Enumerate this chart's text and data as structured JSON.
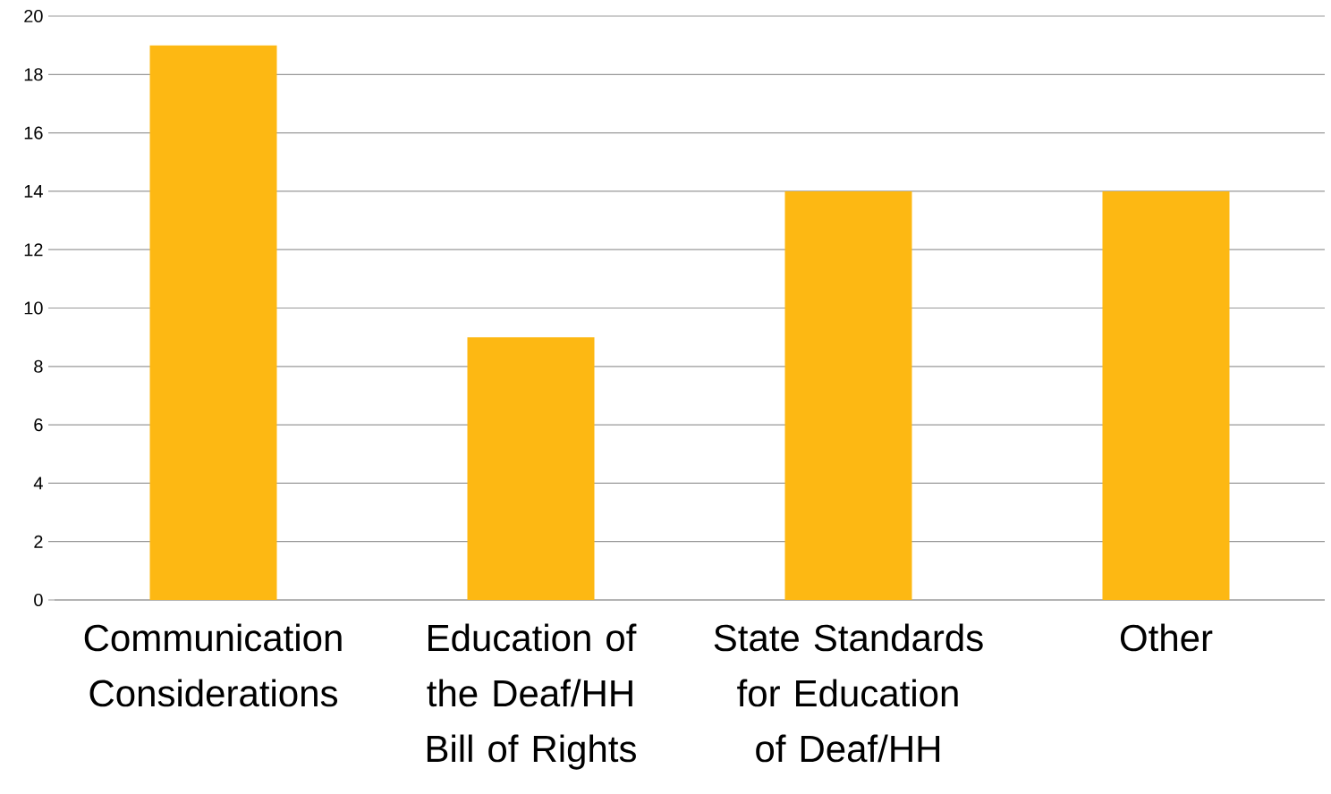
{
  "chart_data": {
    "type": "bar",
    "categories": [
      "Communication Considerations",
      "Education of the Deaf/HH Bill of Rights",
      "State Standards for Education of Deaf/HH",
      "Other"
    ],
    "values": [
      19,
      9,
      14,
      14
    ],
    "color": "#fdb813",
    "ylim": [
      0,
      20
    ],
    "yticks": [
      0,
      2,
      4,
      6,
      8,
      10,
      12,
      14,
      16,
      18,
      20
    ],
    "grid": "y"
  }
}
